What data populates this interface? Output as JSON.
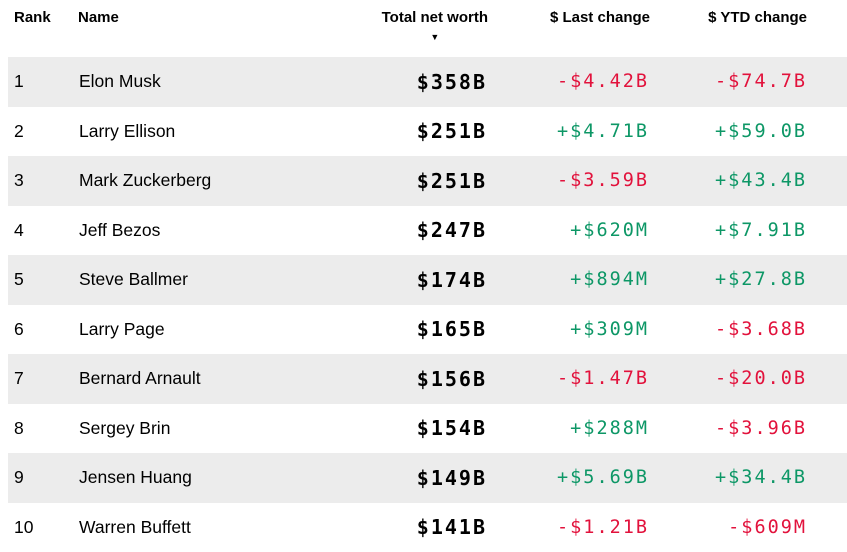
{
  "table": {
    "columns": [
      {
        "label": "Rank"
      },
      {
        "label": "Name"
      },
      {
        "label": "Total net worth",
        "sorted": true,
        "sort_direction": "descending"
      },
      {
        "label": "$ Last change"
      },
      {
        "label": "$ YTD change"
      }
    ],
    "sort_icon": "▼",
    "rows": [
      {
        "rank": "1",
        "name": "Elon Musk",
        "worth": "$358B",
        "last": "-$4.42B",
        "ytd": "-$74.7B"
      },
      {
        "rank": "2",
        "name": "Larry Ellison",
        "worth": "$251B",
        "last": "+$4.71B",
        "ytd": "+$59.0B"
      },
      {
        "rank": "3",
        "name": "Mark Zuckerberg",
        "worth": "$251B",
        "last": "-$3.59B",
        "ytd": "+$43.4B"
      },
      {
        "rank": "4",
        "name": "Jeff Bezos",
        "worth": "$247B",
        "last": "+$620M",
        "ytd": "+$7.91B"
      },
      {
        "rank": "5",
        "name": "Steve Ballmer",
        "worth": "$174B",
        "last": "+$894M",
        "ytd": "+$27.8B"
      },
      {
        "rank": "6",
        "name": "Larry Page",
        "worth": "$165B",
        "last": "+$309M",
        "ytd": "-$3.68B"
      },
      {
        "rank": "7",
        "name": "Bernard Arnault",
        "worth": "$156B",
        "last": "-$1.47B",
        "ytd": "-$20.0B"
      },
      {
        "rank": "8",
        "name": "Sergey Brin",
        "worth": "$154B",
        "last": "+$288M",
        "ytd": "-$3.96B"
      },
      {
        "rank": "9",
        "name": "Jensen Huang",
        "worth": "$149B",
        "last": "+$5.69B",
        "ytd": "+$34.4B"
      },
      {
        "rank": "10",
        "name": "Warren Buffett",
        "worth": "$141B",
        "last": "-$1.21B",
        "ytd": "-$609M"
      }
    ]
  },
  "colors": {
    "positive": "#0d9766",
    "negative": "#e2123c",
    "row_alt_bg": "#ececec",
    "text": "#000000"
  },
  "chart_data": {
    "type": "table",
    "columns": [
      "Rank",
      "Name",
      "Total net worth",
      "$ Last change",
      "$ YTD change"
    ],
    "rows": [
      [
        "1",
        "Elon Musk",
        "$358B",
        "-$4.42B",
        "-$74.7B"
      ],
      [
        "2",
        "Larry Ellison",
        "$251B",
        "+$4.71B",
        "+$59.0B"
      ],
      [
        "3",
        "Mark Zuckerberg",
        "$251B",
        "-$3.59B",
        "+$43.4B"
      ],
      [
        "4",
        "Jeff Bezos",
        "$247B",
        "+$620M",
        "+$7.91B"
      ],
      [
        "5",
        "Steve Ballmer",
        "$174B",
        "+$894M",
        "+$27.8B"
      ],
      [
        "6",
        "Larry Page",
        "$165B",
        "+$309M",
        "-$3.68B"
      ],
      [
        "7",
        "Bernard Arnault",
        "$156B",
        "-$1.47B",
        "-$20.0B"
      ],
      [
        "8",
        "Sergey Brin",
        "$154B",
        "+$288M",
        "-$3.96B"
      ],
      [
        "9",
        "Jensen Huang",
        "$149B",
        "+$5.69B",
        "+$34.4B"
      ],
      [
        "10",
        "Warren Buffett",
        "$141B",
        "-$1.21B",
        "-$609M"
      ]
    ]
  }
}
